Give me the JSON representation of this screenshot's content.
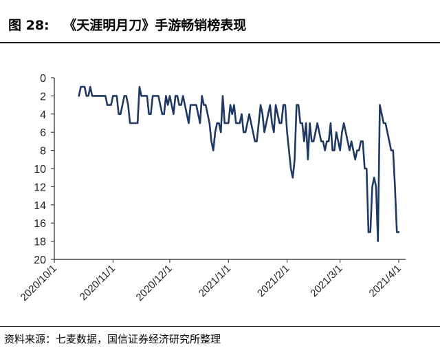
{
  "header": {
    "figure_label": "图 28:",
    "title_text": "《天涯明月刀》手游畅销榜表现"
  },
  "footer": {
    "source": "资料来源：七麦数据，国信证券经济研究所整理"
  },
  "colors": {
    "series": "#1f3864",
    "axis": "#222222"
  },
  "chart_data": {
    "type": "line",
    "title": "",
    "xlabel": "",
    "ylabel": "",
    "y_inverted": true,
    "ylim": [
      0,
      20
    ],
    "y_ticks": [
      "0",
      "2",
      "4",
      "6",
      "8",
      "10",
      "12",
      "14",
      "16",
      "18",
      "20"
    ],
    "x_range": [
      "2020-10-01",
      "2021-04-01"
    ],
    "x_ticks": [
      "2020/10/1",
      "2020/11/1",
      "2020/12/1",
      "2021/1/1",
      "2021/2/1",
      "2021/3/1",
      "2021/4/1"
    ],
    "legend": "none",
    "grid": false,
    "series": [
      {
        "name": "",
        "points": [
          [
            "2020-10-14",
            2
          ],
          [
            "2020-10-15",
            1
          ],
          [
            "2020-10-17",
            1
          ],
          [
            "2020-10-18",
            2
          ],
          [
            "2020-10-19",
            2
          ],
          [
            "2020-10-20",
            1
          ],
          [
            "2020-10-21",
            2
          ],
          [
            "2020-10-25",
            2
          ],
          [
            "2020-10-28",
            2
          ],
          [
            "2020-10-29",
            3
          ],
          [
            "2020-10-31",
            3
          ],
          [
            "2020-11-01",
            2
          ],
          [
            "2020-11-03",
            2
          ],
          [
            "2020-11-04",
            4
          ],
          [
            "2020-11-05",
            4
          ],
          [
            "2020-11-06",
            3
          ],
          [
            "2020-11-07",
            2
          ],
          [
            "2020-11-08",
            2
          ],
          [
            "2020-11-09",
            3
          ],
          [
            "2020-11-10",
            5
          ],
          [
            "2020-11-14",
            5
          ],
          [
            "2020-11-15",
            1
          ],
          [
            "2020-11-16",
            2
          ],
          [
            "2020-11-19",
            2
          ],
          [
            "2020-11-20",
            4
          ],
          [
            "2020-11-21",
            4
          ],
          [
            "2020-11-22",
            2
          ],
          [
            "2020-11-25",
            2
          ],
          [
            "2020-11-26",
            3
          ],
          [
            "2020-11-27",
            4
          ],
          [
            "2020-11-28",
            4
          ],
          [
            "2020-11-29",
            2
          ],
          [
            "2020-11-30",
            3
          ],
          [
            "2020-12-01",
            2
          ],
          [
            "2020-12-02",
            3
          ],
          [
            "2020-12-03",
            4
          ],
          [
            "2020-12-04",
            2
          ],
          [
            "2020-12-05",
            2
          ],
          [
            "2020-12-06",
            3
          ],
          [
            "2020-12-07",
            3
          ],
          [
            "2020-12-08",
            2
          ],
          [
            "2020-12-09",
            3
          ],
          [
            "2020-12-10",
            4
          ],
          [
            "2020-12-11",
            5
          ],
          [
            "2020-12-12",
            3
          ],
          [
            "2020-12-15",
            3
          ],
          [
            "2020-12-16",
            4
          ],
          [
            "2020-12-17",
            5
          ],
          [
            "2020-12-18",
            2
          ],
          [
            "2020-12-19",
            3
          ],
          [
            "2020-12-20",
            3
          ],
          [
            "2020-12-22",
            5
          ],
          [
            "2020-12-23",
            7
          ],
          [
            "2020-12-24",
            8
          ],
          [
            "2020-12-25",
            6
          ],
          [
            "2020-12-26",
            5
          ],
          [
            "2020-12-27",
            5
          ],
          [
            "2020-12-28",
            6
          ],
          [
            "2020-12-29",
            2
          ],
          [
            "2020-12-30",
            5
          ],
          [
            "2021-01-01",
            5
          ],
          [
            "2021-01-02",
            3
          ],
          [
            "2021-01-03",
            4
          ],
          [
            "2021-01-04",
            3
          ],
          [
            "2021-01-05",
            5
          ],
          [
            "2021-01-07",
            5
          ],
          [
            "2021-01-08",
            4
          ],
          [
            "2021-01-09",
            6
          ],
          [
            "2021-01-10",
            6
          ],
          [
            "2021-01-11",
            5
          ],
          [
            "2021-01-12",
            4
          ],
          [
            "2021-01-13",
            5
          ],
          [
            "2021-01-14",
            6
          ],
          [
            "2021-01-15",
            7
          ],
          [
            "2021-01-16",
            7
          ],
          [
            "2021-01-17",
            5
          ],
          [
            "2021-01-18",
            3
          ],
          [
            "2021-01-19",
            4
          ],
          [
            "2021-01-20",
            6
          ],
          [
            "2021-01-21",
            5
          ],
          [
            "2021-01-22",
            4
          ],
          [
            "2021-01-23",
            3
          ],
          [
            "2021-01-24",
            5
          ],
          [
            "2021-01-25",
            6
          ],
          [
            "2021-01-26",
            3
          ],
          [
            "2021-01-27",
            4
          ],
          [
            "2021-01-28",
            5
          ],
          [
            "2021-01-29",
            5
          ],
          [
            "2021-01-30",
            3
          ],
          [
            "2021-01-31",
            3
          ],
          [
            "2021-02-01",
            6
          ],
          [
            "2021-02-02",
            8
          ],
          [
            "2021-02-03",
            10
          ],
          [
            "2021-02-04",
            11
          ],
          [
            "2021-02-05",
            9
          ],
          [
            "2021-02-06",
            3
          ],
          [
            "2021-02-07",
            3
          ],
          [
            "2021-02-08",
            5
          ],
          [
            "2021-02-09",
            5
          ],
          [
            "2021-02-10",
            7
          ],
          [
            "2021-02-11",
            5
          ],
          [
            "2021-02-12",
            9
          ],
          [
            "2021-02-13",
            5
          ],
          [
            "2021-02-14",
            7
          ],
          [
            "2021-02-15",
            7
          ],
          [
            "2021-02-16",
            6
          ],
          [
            "2021-02-17",
            5
          ],
          [
            "2021-02-18",
            6
          ],
          [
            "2021-02-19",
            7
          ],
          [
            "2021-02-20",
            7
          ],
          [
            "2021-02-21",
            8
          ],
          [
            "2021-02-22",
            7
          ],
          [
            "2021-02-23",
            7
          ],
          [
            "2021-02-24",
            5
          ],
          [
            "2021-02-25",
            8
          ],
          [
            "2021-02-26",
            8
          ],
          [
            "2021-02-27",
            6
          ],
          [
            "2021-02-28",
            7
          ],
          [
            "2021-03-01",
            8
          ],
          [
            "2021-03-02",
            6
          ],
          [
            "2021-03-03",
            5
          ],
          [
            "2021-03-04",
            6
          ],
          [
            "2021-03-05",
            7
          ],
          [
            "2021-03-06",
            8
          ],
          [
            "2021-03-07",
            7
          ],
          [
            "2021-03-08",
            8
          ],
          [
            "2021-03-09",
            9
          ],
          [
            "2021-03-10",
            8
          ],
          [
            "2021-03-11",
            8
          ],
          [
            "2021-03-12",
            7
          ],
          [
            "2021-03-13",
            7
          ],
          [
            "2021-03-14",
            10
          ],
          [
            "2021-03-15",
            10
          ],
          [
            "2021-03-16",
            17
          ],
          [
            "2021-03-17",
            17
          ],
          [
            "2021-03-18",
            12
          ],
          [
            "2021-03-19",
            11
          ],
          [
            "2021-03-20",
            12
          ],
          [
            "2021-03-21",
            18
          ],
          [
            "2021-03-22",
            3
          ],
          [
            "2021-03-23",
            4
          ],
          [
            "2021-03-24",
            5
          ],
          [
            "2021-03-25",
            5
          ],
          [
            "2021-03-26",
            6
          ],
          [
            "2021-03-27",
            7
          ],
          [
            "2021-03-28",
            8
          ],
          [
            "2021-03-29",
            8
          ],
          [
            "2021-03-30",
            12
          ],
          [
            "2021-03-31",
            17
          ],
          [
            "2021-04-01",
            17
          ]
        ]
      }
    ]
  }
}
